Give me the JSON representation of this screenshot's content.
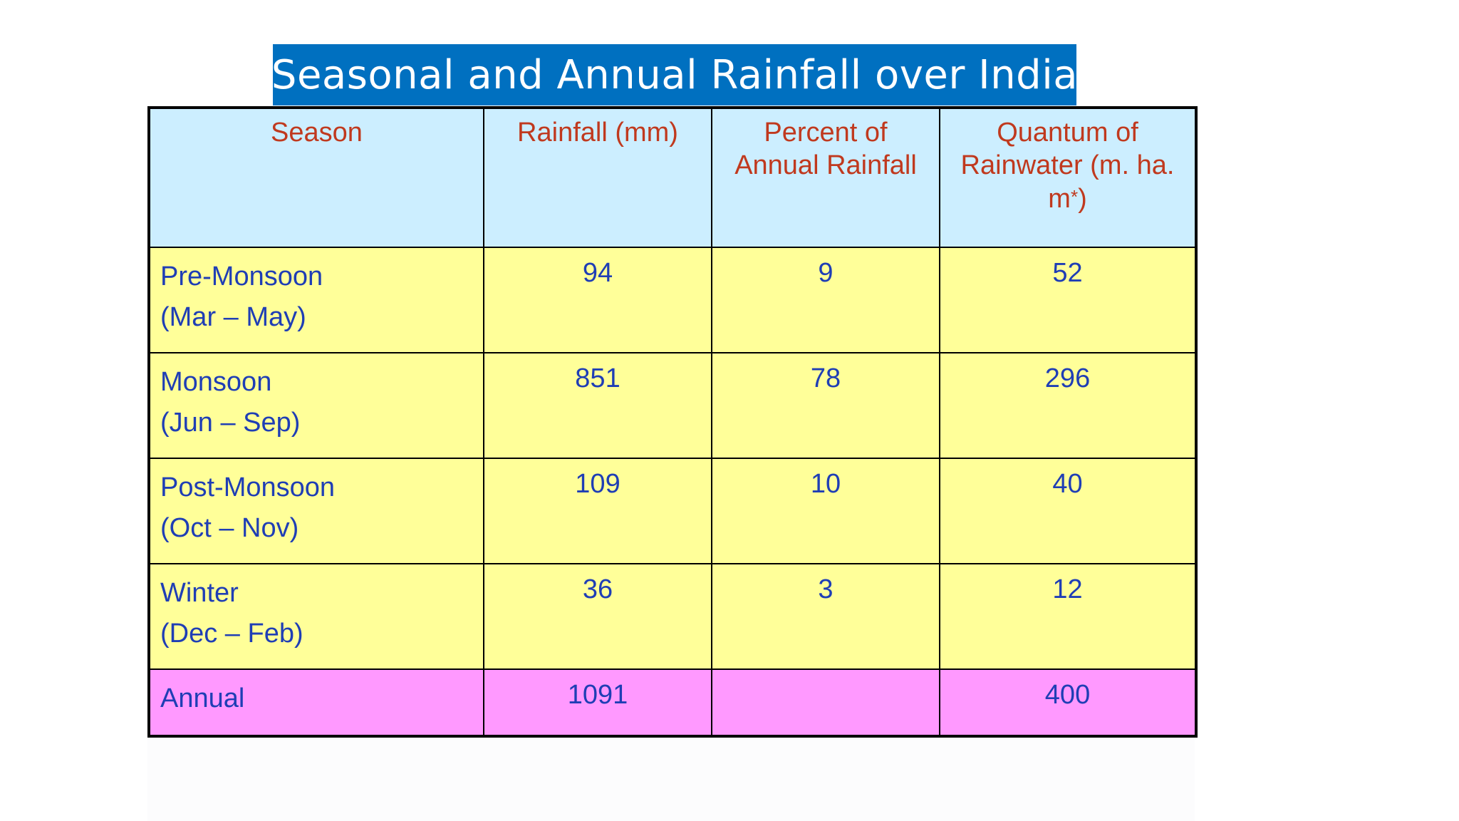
{
  "title": "Seasonal and Annual Rainfall over India",
  "table": {
    "headers": [
      {
        "text": "Season"
      },
      {
        "text": "Rainfall (mm)"
      },
      {
        "text": "Percent of Annual Rainfall"
      },
      {
        "text": "Quantum of Rainwater (m. ha. m*)"
      }
    ],
    "rows": [
      {
        "season": "Pre-Monsoon",
        "months": "(Mar – May)",
        "rainfall": "94",
        "percent": "9",
        "quantum": "52"
      },
      {
        "season": "Monsoon",
        "months": "(Jun – Sep)",
        "rainfall": "851",
        "percent": "78",
        "quantum": "296"
      },
      {
        "season": "Post-Monsoon",
        "months": "(Oct – Nov)",
        "rainfall": "109",
        "percent": "10",
        "quantum": "40"
      },
      {
        "season": "Winter",
        "months": "(Dec – Feb)",
        "rainfall": "36",
        "percent": "3",
        "quantum": "12"
      }
    ],
    "annual": {
      "season": "Annual",
      "rainfall": "1091",
      "percent": "",
      "quantum": "400"
    }
  },
  "colors": {
    "title_bg": "#0070c0",
    "header_bg": "#cceeff",
    "header_text": "#c0391e",
    "row_bg": "#ffff99",
    "annual_bg": "#ff99ff",
    "body_text": "#1f3eb5"
  }
}
